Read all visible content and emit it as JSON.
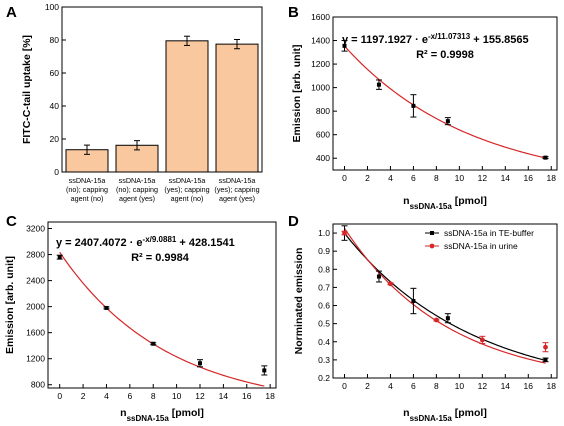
{
  "chart_data": [
    {
      "panel": "A",
      "type": "bar",
      "categories": [
        [
          "ssDNA-15a",
          "(no); capping",
          "agent (no)"
        ],
        [
          "ssDNA-15a",
          "(no); capping",
          "agent (yes)"
        ],
        [
          "ssDNA-15a",
          "(yes); capping",
          "agent (no)"
        ],
        [
          "ssDNA-15a",
          "(yes); capping",
          "agent (yes)"
        ]
      ],
      "values": [
        13.5,
        16.2,
        79.5,
        77.5
      ],
      "errors": [
        2.8,
        2.8,
        2.8,
        2.8
      ],
      "ylabel": "FITC-C-tail uptake [%]",
      "ylim": [
        0,
        100
      ],
      "yticks": [
        0,
        20,
        40,
        60,
        80,
        100
      ],
      "bar_color": "#f9c89e"
    },
    {
      "panel": "B",
      "type": "scatter",
      "x": [
        0,
        3,
        6,
        9,
        17.5
      ],
      "y": [
        1355,
        1025,
        845,
        715,
        405
      ],
      "errors": [
        45,
        40,
        95,
        30,
        8
      ],
      "fit": {
        "a": 1197.1927,
        "tau": 11.07313,
        "c": 155.8565
      },
      "equation": "y = 1197.1927 · e",
      "exponent": "-x/11.07313",
      "equation_tail": " + 155.8565",
      "r2": "R² = 0.9998",
      "xlabel_main": "n",
      "xlabel_sub": "ssDNA-15a",
      "xlabel_unit": " [pmol]",
      "ylabel": "Emission [arb. unit]",
      "xlim": [
        -1,
        18.5
      ],
      "ylim": [
        300,
        1600
      ],
      "xticks": [
        0,
        2,
        4,
        6,
        8,
        10,
        12,
        14,
        16,
        18
      ],
      "yticks": [
        400,
        600,
        800,
        1000,
        1200,
        1400,
        1600
      ],
      "fit_color": "#d62728"
    },
    {
      "panel": "C",
      "type": "scatter",
      "x": [
        0,
        4,
        8,
        12,
        17.5
      ],
      "y": [
        2760,
        1980,
        1430,
        1130,
        1020
      ],
      "errors": [
        30,
        15,
        15,
        55,
        70
      ],
      "fit": {
        "a": 2407.4072,
        "tau": 9.0881,
        "c": 428.1541
      },
      "equation": "y = 2407.4072 · e",
      "exponent": "-x/9.0881",
      "equation_tail": " + 428.1541",
      "r2": "R² = 0.9984",
      "xlabel_main": "n",
      "xlabel_sub": "ssDNA-15a",
      "xlabel_unit": " [pmol]",
      "ylabel": "Emission [arb. unit]",
      "xlim": [
        -1,
        18.5
      ],
      "ylim": [
        750,
        3300
      ],
      "xticks": [
        0,
        2,
        4,
        6,
        8,
        10,
        12,
        14,
        16,
        18
      ],
      "yticks": [
        800,
        1200,
        1600,
        2000,
        2400,
        2800,
        3200
      ],
      "fit_color": "#d62728"
    },
    {
      "panel": "D",
      "type": "scatter",
      "xlabel_main": "n",
      "xlabel_sub": "ssDNA-15a",
      "xlabel_unit": " [pmol]",
      "ylabel": "Norminated emission",
      "xlim": [
        -1,
        18.5
      ],
      "ylim": [
        0.2,
        1.05
      ],
      "xticks": [
        0,
        2,
        4,
        6,
        8,
        10,
        12,
        14,
        16,
        18
      ],
      "yticks": [
        0.2,
        0.3,
        0.4,
        0.5,
        0.6,
        0.7,
        0.8,
        0.9,
        1.0
      ],
      "legend_position": "top-right",
      "series": [
        {
          "name": "ssDNA-15a in TE-buffer",
          "color": "#000000",
          "x": [
            0,
            3,
            6,
            9,
            17.5
          ],
          "y": [
            1.0,
            0.76,
            0.625,
            0.53,
            0.3
          ],
          "errors": [
            0.04,
            0.03,
            0.07,
            0.025,
            0.01
          ],
          "fit": {
            "a": 0.884,
            "tau": 11.07313,
            "c": 0.115
          }
        },
        {
          "name": "ssDNA-15a in urine",
          "color": "#d62728",
          "x": [
            0,
            4,
            8,
            12,
            17.5
          ],
          "y": [
            1.0,
            0.72,
            0.52,
            0.41,
            0.37
          ],
          "errors": [
            0.01,
            0.005,
            0.005,
            0.02,
            0.025
          ],
          "fit": {
            "a": 0.871,
            "tau": 9.0881,
            "c": 0.155
          }
        }
      ]
    }
  ]
}
